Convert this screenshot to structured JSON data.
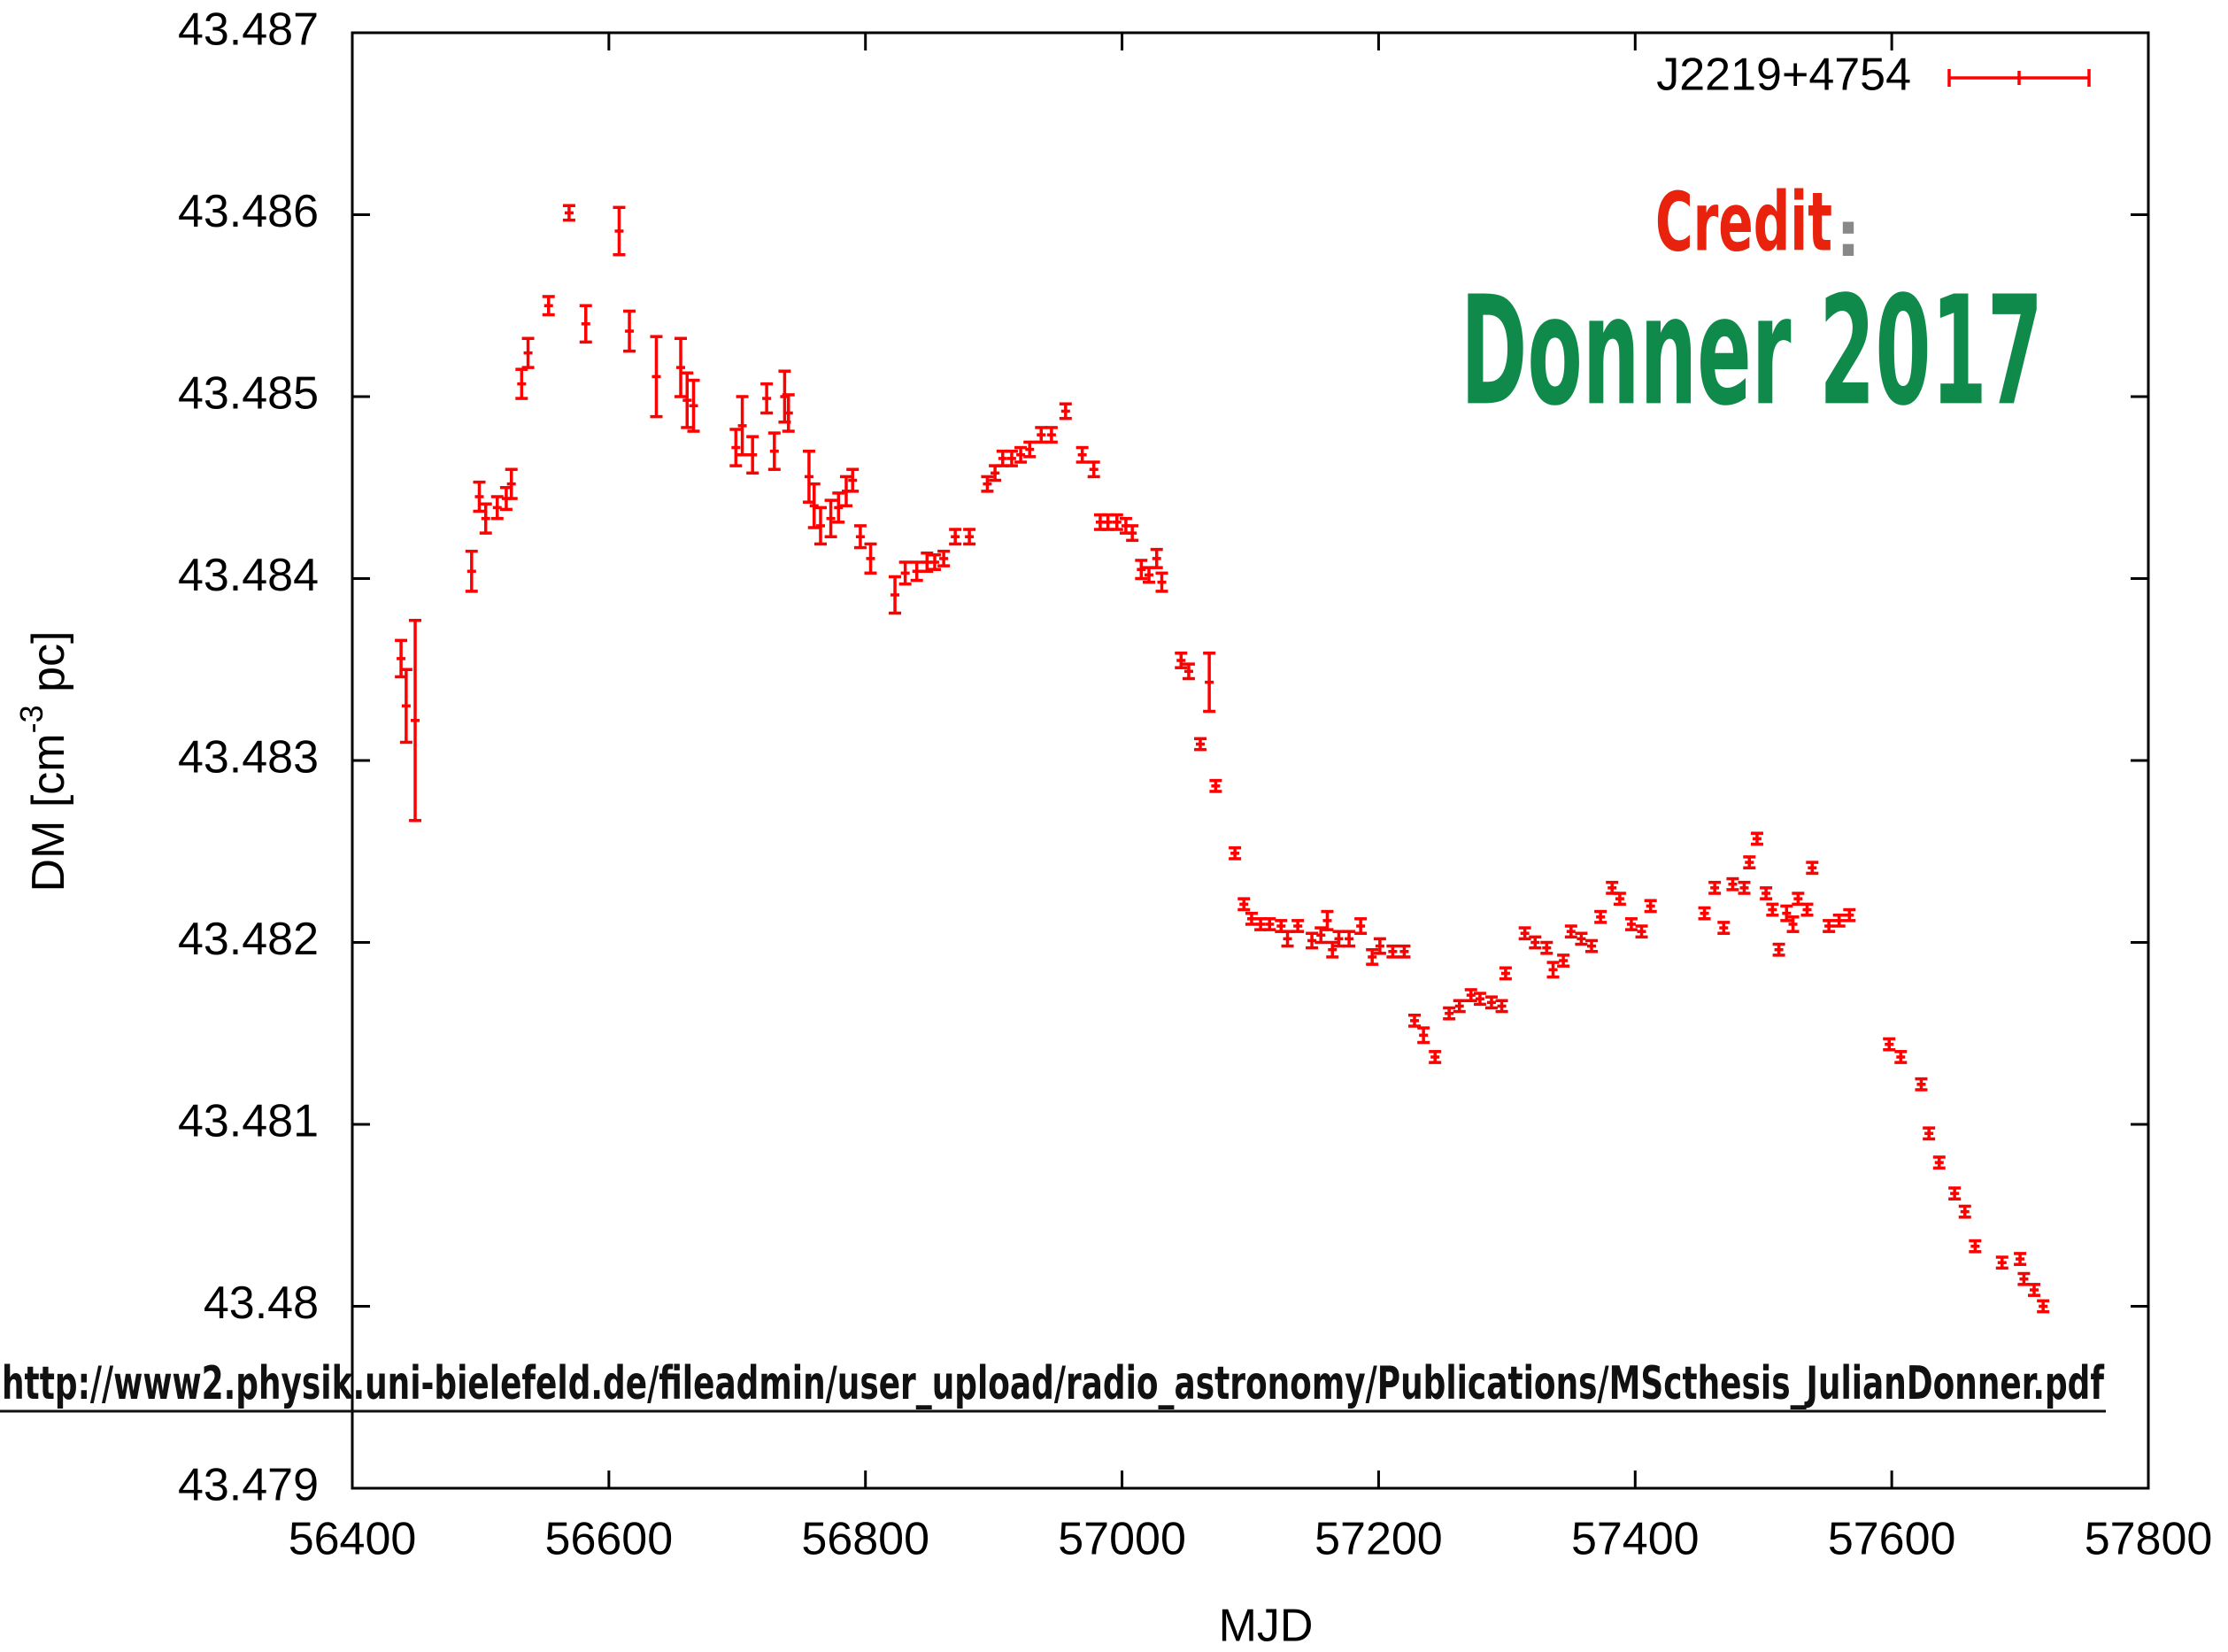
{
  "chart_data": {
    "type": "errorbar",
    "x_label": "MJD",
    "y_label": {
      "text": "DM [cm",
      "sup": "-3",
      "rest": " pc]"
    },
    "annotations": {
      "credit": "Credit",
      "colon": ":",
      "author": "Donner 2017",
      "url": "http://www2.physik.uni-bielefeld.de/fileadmin/user_upload/radio_astronomy/Publications/MScthesis_JulianDonner.pdf"
    },
    "xlim": [
      56400,
      57800
    ],
    "xticks": [
      56400,
      56600,
      56800,
      57000,
      57200,
      57400,
      57600,
      57800
    ],
    "ylim": [
      43.479,
      43.487
    ],
    "yticks": [
      43.479,
      43.48,
      43.481,
      43.482,
      43.483,
      43.484,
      43.485,
      43.486,
      43.487
    ],
    "legend": "top-right",
    "x": [
      56438,
      56442,
      56449,
      56493,
      56499,
      56504,
      56513,
      56520,
      56524,
      56532,
      56537,
      56553,
      56569,
      56582,
      56608,
      56616,
      56637,
      56656,
      56661,
      56666,
      56699,
      56704,
      56712,
      56723,
      56729,
      56737,
      56740,
      56756,
      56760,
      56765,
      56773,
      56779,
      56785,
      56790,
      56796,
      56804,
      56823,
      56831,
      56840,
      56848,
      56854,
      56861,
      56870,
      56881,
      56895,
      56901,
      56907,
      56914,
      56921,
      56928,
      56937,
      56945,
      56956,
      56969,
      56978,
      56983,
      56989,
      56996,
      57003,
      57008,
      57015,
      57021,
      57027,
      57031,
      57046,
      57052,
      57068,
      57061,
      57073,
      57088,
      57095,
      57101,
      57108,
      57115,
      57124,
      57129,
      57137,
      57148,
      57155,
      57160,
      57164,
      57169,
      57177,
      57186,
      57195,
      57201,
      57211,
      57220,
      57228,
      57235,
      57244,
      57255,
      57263,
      57272,
      57279,
      57288,
      57296,
      57299,
      57314,
      57322,
      57331,
      57336,
      57344,
      57350,
      57358,
      57366,
      57373,
      57382,
      57388,
      57397,
      57405,
      57412,
      57454,
      57462,
      57469,
      57476,
      57485,
      57489,
      57495,
      57502,
      57507,
      57512,
      57518,
      57523,
      57527,
      57534,
      57538,
      57551,
      57559,
      57567,
      57598,
      57607,
      57623,
      57629,
      57637,
      57649,
      57657,
      57665,
      57686,
      57700,
      57703,
      57711,
      57718
    ],
    "series": [
      {
        "name": "J2219+4754",
        "color": "#ff0000",
        "values": [
          43.48356,
          43.4833,
          43.48322,
          43.48404,
          43.48445,
          43.48433,
          43.48439,
          43.48444,
          43.48452,
          43.48507,
          43.48524,
          43.4855,
          43.48601,
          43.4854,
          43.48591,
          43.48536,
          43.48511,
          43.48516,
          43.48498,
          43.48495,
          43.48472,
          43.48484,
          43.48468,
          43.48499,
          43.4847,
          43.485,
          43.48491,
          43.48456,
          43.4844,
          43.48429,
          43.48433,
          43.48439,
          43.48448,
          43.48454,
          43.48423,
          43.48411,
          43.48391,
          43.48403,
          43.48404,
          43.48409,
          43.48409,
          43.48411,
          43.48423,
          43.48423,
          43.48452,
          43.48458,
          43.48466,
          43.48466,
          43.48468,
          43.48471,
          43.48479,
          43.48479,
          43.48492,
          43.48468,
          43.4846,
          43.48431,
          43.48431,
          43.48431,
          43.48429,
          43.48425,
          43.48405,
          43.48402,
          43.48411,
          43.48398,
          43.48355,
          43.48349,
          43.48343,
          43.48309,
          43.48286,
          43.48249,
          43.48221,
          43.48213,
          43.4821,
          43.4821,
          43.48209,
          43.48202,
          43.48209,
          43.48201,
          43.48204,
          43.48212,
          43.48196,
          43.48202,
          43.48202,
          43.48209,
          43.48192,
          43.48198,
          43.48195,
          43.48195,
          43.48157,
          43.48149,
          43.48137,
          43.48161,
          43.48165,
          43.48171,
          43.48169,
          43.48167,
          43.48165,
          43.48183,
          43.48205,
          43.482,
          43.48197,
          43.48185,
          43.4819,
          43.48206,
          43.48202,
          43.48198,
          43.48214,
          43.4823,
          43.48224,
          43.4821,
          43.48206,
          43.4822,
          43.48216,
          43.4823,
          43.48208,
          43.48232,
          43.4823,
          43.48244,
          43.48257,
          43.48227,
          43.48218,
          43.48196,
          43.48216,
          43.4821,
          43.48224,
          43.48218,
          43.48241,
          43.48209,
          43.48212,
          43.48215,
          43.48144,
          43.48137,
          43.48122,
          43.48095,
          43.48079,
          43.48062,
          43.48052,
          43.48033,
          43.48024,
          43.48026,
          43.48015,
          43.48009,
          43.48
        ],
        "errors": [
          0.0001,
          0.0002,
          0.00055,
          0.00011,
          8e-05,
          8e-05,
          6e-05,
          6e-05,
          8e-05,
          8e-05,
          8e-05,
          5e-05,
          4e-05,
          0.0001,
          0.00013,
          0.00011,
          0.00022,
          0.00016,
          0.00015,
          0.00014,
          0.0001,
          0.00016,
          0.0001,
          8e-05,
          0.0001,
          0.00014,
          0.0001,
          0.00014,
          0.00012,
          0.0001,
          0.0001,
          8e-05,
          8e-05,
          6e-05,
          6e-05,
          8e-05,
          0.0001,
          6e-05,
          5e-05,
          5e-05,
          4e-05,
          4e-05,
          4e-05,
          4e-05,
          4e-05,
          4e-05,
          4e-05,
          4e-05,
          4e-05,
          4e-05,
          4e-05,
          4e-05,
          4e-05,
          4e-05,
          4e-05,
          4e-05,
          4e-05,
          4e-05,
          4e-05,
          4e-05,
          5e-05,
          4e-05,
          5e-05,
          5e-05,
          4e-05,
          4e-05,
          0.00016,
          3e-05,
          3e-05,
          3e-05,
          3e-05,
          3e-05,
          3e-05,
          3e-05,
          3e-05,
          4e-05,
          3e-05,
          4e-05,
          4e-05,
          5e-05,
          4e-05,
          4e-05,
          4e-05,
          4e-05,
          4e-05,
          4e-05,
          3e-05,
          3e-05,
          3e-05,
          4e-05,
          3e-05,
          3e-05,
          3e-05,
          3e-05,
          3e-05,
          3e-05,
          3e-05,
          3e-05,
          3e-05,
          3e-05,
          3e-05,
          4e-05,
          3e-05,
          3e-05,
          3e-05,
          3e-05,
          3e-05,
          3e-05,
          3e-05,
          3e-05,
          3e-05,
          3e-05,
          3e-05,
          3e-05,
          3e-05,
          3e-05,
          3e-05,
          3e-05,
          3e-05,
          3e-05,
          3e-05,
          3e-05,
          4e-05,
          4e-05,
          3e-05,
          3e-05,
          3e-05,
          3e-05,
          3e-05,
          3e-05,
          3e-05,
          3e-05,
          3e-05,
          3e-05,
          3e-05,
          3e-05,
          3e-05,
          3e-05,
          3e-05,
          3e-05,
          3e-05,
          3e-05,
          3e-05
        ]
      }
    ]
  }
}
